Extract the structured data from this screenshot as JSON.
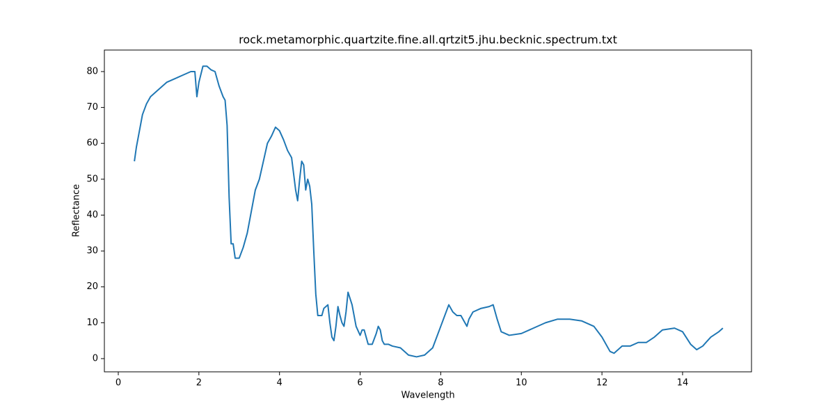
{
  "chart_data": {
    "type": "line",
    "title": "rock.metamorphic.quartzite.fine.all.qrtzit5.jhu.becknic.spectrum.txt",
    "x_label": "Wavelength",
    "y_label": "Reflectance",
    "x": [
      0.4,
      0.45,
      0.5,
      0.6,
      0.7,
      0.8,
      1.0,
      1.2,
      1.4,
      1.6,
      1.8,
      1.9,
      1.95,
      2.0,
      2.1,
      2.2,
      2.3,
      2.4,
      2.5,
      2.6,
      2.65,
      2.7,
      2.75,
      2.8,
      2.85,
      2.9,
      3.0,
      3.1,
      3.2,
      3.3,
      3.4,
      3.5,
      3.6,
      3.7,
      3.8,
      3.9,
      4.0,
      4.1,
      4.2,
      4.3,
      4.4,
      4.45,
      4.5,
      4.55,
      4.6,
      4.65,
      4.7,
      4.75,
      4.8,
      4.85,
      4.9,
      4.95,
      5.05,
      5.1,
      5.2,
      5.25,
      5.3,
      5.35,
      5.4,
      5.45,
      5.5,
      5.55,
      5.6,
      5.65,
      5.7,
      5.8,
      5.9,
      6.0,
      6.05,
      6.1,
      6.2,
      6.3,
      6.4,
      6.45,
      6.5,
      6.55,
      6.6,
      6.7,
      6.8,
      7.0,
      7.2,
      7.4,
      7.6,
      7.8,
      8.0,
      8.2,
      8.3,
      8.4,
      8.5,
      8.6,
      8.65,
      8.7,
      8.8,
      9.0,
      9.2,
      9.3,
      9.4,
      9.5,
      9.7,
      10.0,
      10.3,
      10.6,
      10.9,
      11.2,
      11.5,
      11.8,
      12.0,
      12.2,
      12.3,
      12.5,
      12.7,
      12.9,
      13.1,
      13.3,
      13.5,
      13.8,
      14.0,
      14.2,
      14.35,
      14.5,
      14.7,
      14.9,
      15.0
    ],
    "series": [
      {
        "name": "spectrum",
        "color": "#1f77b4",
        "values": [
          55,
          59,
          62,
          68,
          71,
          73,
          75,
          77,
          78,
          79,
          80,
          80,
          73,
          77,
          81.5,
          81.5,
          80.5,
          80,
          76,
          73,
          72,
          65,
          45,
          32,
          32,
          28,
          28,
          31,
          35,
          41,
          47,
          50,
          55,
          60,
          62,
          64.5,
          63.5,
          61,
          58,
          56,
          47,
          44,
          50,
          55,
          54,
          47,
          50,
          48,
          43,
          30,
          18,
          12,
          12,
          14,
          15,
          10,
          6,
          5,
          9,
          14.5,
          12,
          10,
          9,
          13,
          18.5,
          15,
          9,
          6.5,
          8,
          8,
          4,
          4,
          7,
          9,
          8,
          5,
          4,
          4,
          3.5,
          3,
          1,
          0.5,
          1,
          3,
          9,
          15,
          13,
          12,
          12,
          10,
          9,
          11,
          13,
          14,
          14.5,
          15,
          11,
          7.5,
          6.5,
          7,
          8.5,
          10,
          11,
          11,
          10.5,
          9,
          6,
          2,
          1.5,
          3.5,
          3.5,
          4.5,
          4.5,
          6,
          8,
          8.5,
          7.5,
          4,
          2.5,
          3.5,
          6,
          7.5,
          8.5
        ]
      }
    ],
    "xlim": [
      -0.345,
      15.71
    ],
    "ylim": [
      -3.68,
      86.0
    ],
    "xticks": [
      0,
      2,
      4,
      6,
      8,
      10,
      12,
      14
    ],
    "yticks": [
      0,
      10,
      20,
      30,
      40,
      50,
      60,
      70,
      80
    ]
  }
}
